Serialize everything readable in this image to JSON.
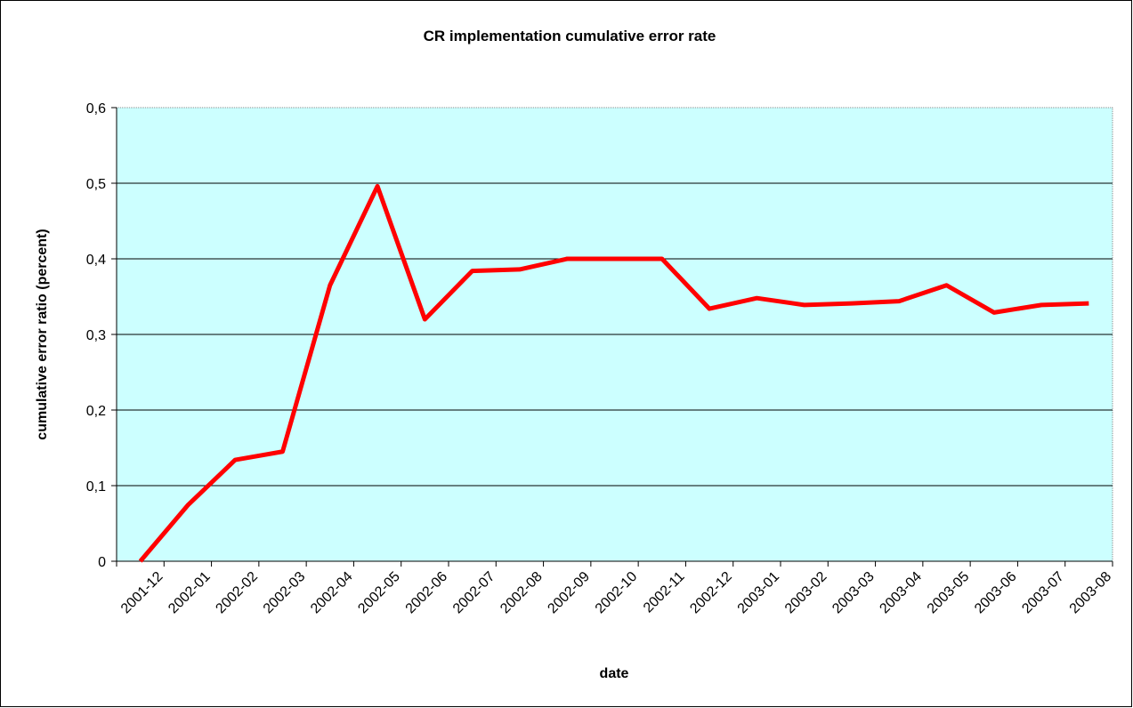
{
  "chart_data": {
    "type": "line",
    "title": "CR implementation cumulative error rate",
    "xlabel": "date",
    "ylabel": "cumulative error ratio (percent)",
    "categories": [
      "2001-12",
      "2002-01",
      "2002-02",
      "2002-03",
      "2002-04",
      "2002-05",
      "2002-06",
      "2002-07",
      "2002-08",
      "2002-09",
      "2002-10",
      "2002-11",
      "2002-12",
      "2003-01",
      "2003-02",
      "2003-03",
      "2003-04",
      "2003-05",
      "2003-06",
      "2003-07",
      "2003-08"
    ],
    "series": [
      {
        "name": "cumulative error ratio",
        "color": "#ff0000",
        "values": [
          0,
          0.074,
          0.134,
          0.145,
          0.365,
          0.496,
          0.32,
          0.384,
          0.386,
          0.4,
          0.4,
          0.4,
          0.334,
          0.348,
          0.339,
          0.341,
          0.344,
          0.365,
          0.329,
          0.339,
          0.341
        ]
      }
    ],
    "ylim": [
      0,
      0.6
    ],
    "yticks": [
      0,
      {
        "value": 0.1,
        "label": "0,1"
      },
      {
        "value": 0.2,
        "label": "0,2"
      },
      {
        "value": 0.3,
        "label": "0,3"
      },
      {
        "value": 0.4,
        "label": "0,4"
      },
      {
        "value": 0.5,
        "label": "0,5"
      },
      {
        "value": 0.6,
        "label": "0,6"
      }
    ],
    "grid": true,
    "background": "#ccffff"
  }
}
